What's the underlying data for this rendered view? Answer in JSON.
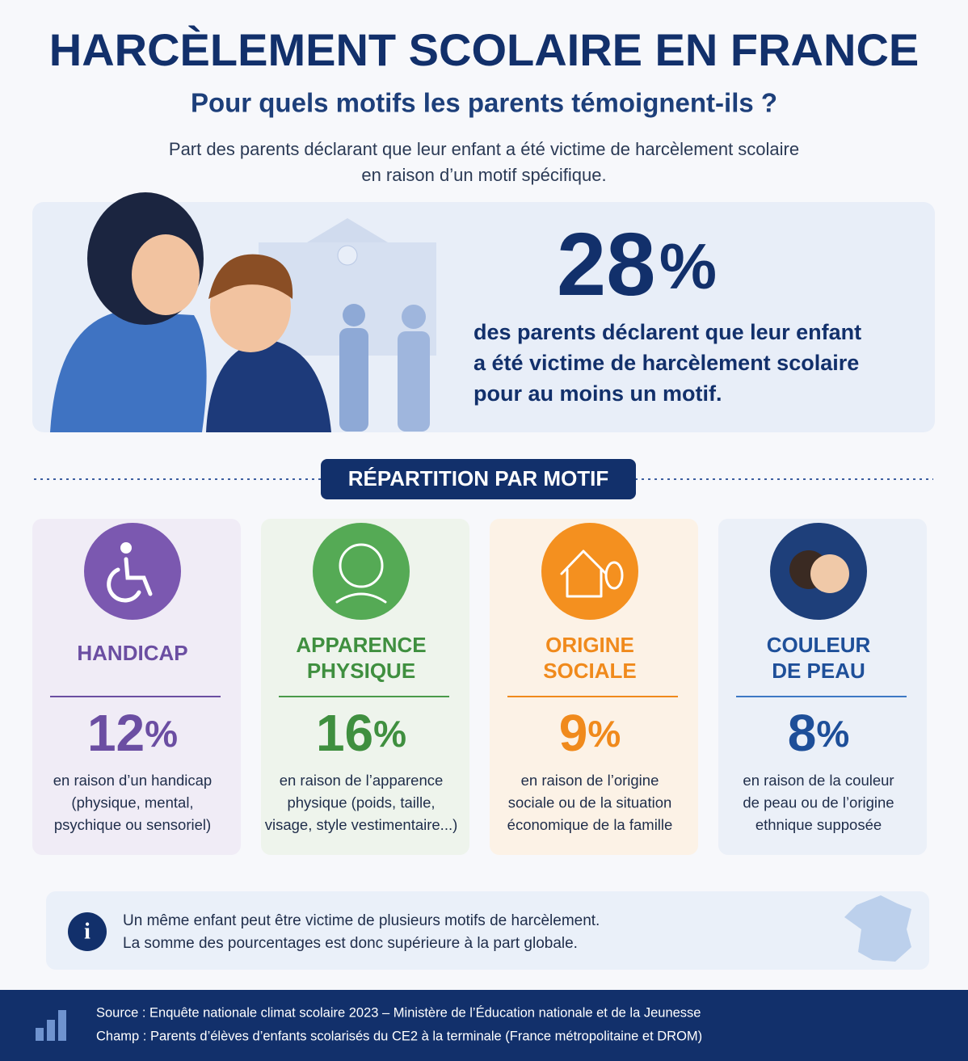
{
  "header": {
    "title": "HARCÈLEMENT SCOLAIRE EN FRANCE",
    "subtitle": "Pour quels motifs les parents témoignent-ils ?",
    "description": [
      "Part des parents déclarant que leur enfant a été victime de harcèlement scolaire",
      "en raison d’un motif spécifique."
    ]
  },
  "highlight": {
    "value": "28",
    "unit": "%",
    "text": [
      "des parents déclarent que leur enfant",
      "a été victime de harcèlement scolaire",
      "pour au moins un motif."
    ]
  },
  "section_title": "RÉPARTITION PAR MOTIF",
  "motifs": [
    {
      "label": [
        "HANDICAP"
      ],
      "value": "12",
      "unit": "%",
      "description": [
        "en raison d’un handicap",
        "(physique, mental,",
        "psychique ou sensoriel)"
      ]
    },
    {
      "label": [
        "APPARENCE",
        "PHYSIQUE"
      ],
      "value": "16",
      "unit": "%",
      "description": [
        "en raison de l’apparence",
        "physique (poids, taille,",
        "visage, style vestimentaire...)"
      ]
    },
    {
      "label": [
        "ORIGINE",
        "SOCIALE"
      ],
      "value": "9",
      "unit": "%",
      "description": [
        "en raison de l’origine",
        "sociale ou de la situation",
        "économique de la famille"
      ]
    },
    {
      "label": [
        "COULEUR",
        "DE PEAU"
      ],
      "value": "8",
      "unit": "%",
      "description": [
        "en raison de la couleur",
        "de peau ou de l’origine",
        "ethnique supposée"
      ]
    }
  ],
  "note": [
    "Un même enfant peut être victime de plusieurs motifs de harcèlement.",
    "La somme des pourcentages est donc supérieure à la part globale."
  ],
  "footer": [
    "Source : Enquête nationale climat scolaire 2023 – Ministère de l’Éducation nationale et de la Jeunesse",
    "Champ : Parents d’élèves d’enfants scolarisés du CE2 à la terminale (France métropolitaine et DROM)"
  ]
}
